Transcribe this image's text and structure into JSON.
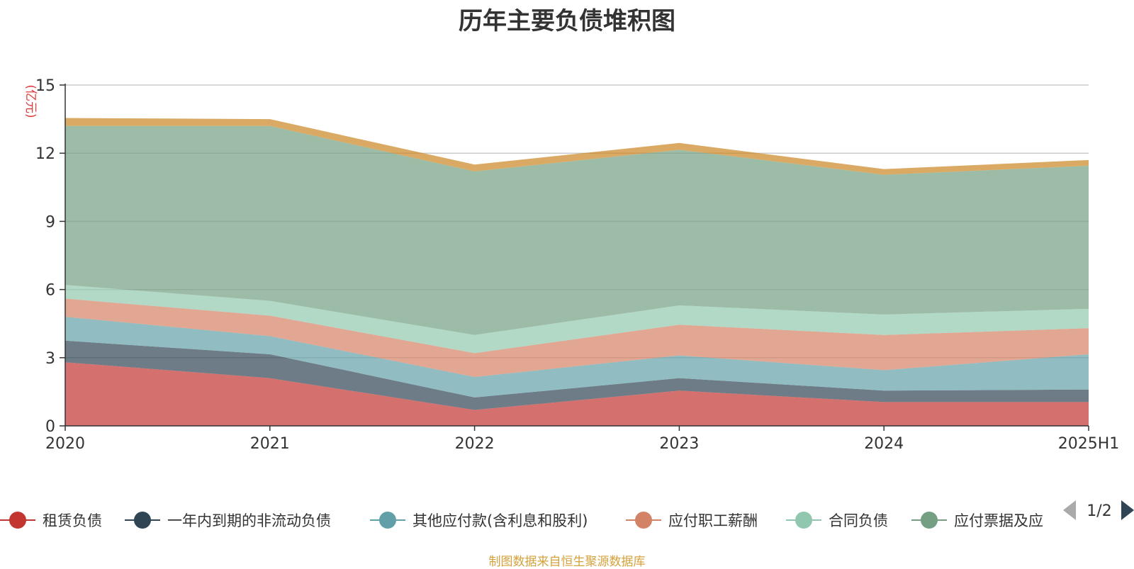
{
  "title": "历年主要负债堆积图",
  "footnote": "制图数据来自恒生聚源数据库",
  "legend_page": "1/2",
  "chart_data": {
    "type": "area",
    "stacked": true,
    "title": "历年主要负债堆积图",
    "ylabel": "(亿元)",
    "xlabel": "",
    "ylim": [
      0,
      15
    ],
    "yticks": [
      0,
      3,
      6,
      9,
      12,
      15
    ],
    "categories": [
      "2020",
      "2021",
      "2022",
      "2023",
      "2024",
      "2025H1"
    ],
    "grid": true,
    "legend_position": "bottom",
    "series": [
      {
        "name": "租赁负债",
        "color": "#c23531",
        "values": [
          2.8,
          2.1,
          0.7,
          1.55,
          1.05,
          1.05
        ]
      },
      {
        "name": "一年内到期的非流动负债",
        "color": "#2f4554",
        "values": [
          0.95,
          1.05,
          0.55,
          0.55,
          0.5,
          0.55
        ]
      },
      {
        "name": "其他应付款(含利息和股利)",
        "color": "#61a0a8",
        "values": [
          1.05,
          0.8,
          0.9,
          1.0,
          0.9,
          1.55
        ]
      },
      {
        "name": "应付职工薪酬",
        "color": "#d48265",
        "values": [
          0.8,
          0.9,
          1.05,
          1.35,
          1.55,
          1.15
        ]
      },
      {
        "name": "合同负债",
        "color": "#91c7ae",
        "values": [
          0.6,
          0.65,
          0.8,
          0.85,
          0.9,
          0.85
        ]
      },
      {
        "name": "应付票据及应付账款",
        "legend_text": "应付票据及应",
        "color": "#749f83",
        "values": [
          7.0,
          7.7,
          7.2,
          6.85,
          6.15,
          6.3
        ]
      },
      {
        "name": "",
        "color": "#ca8622",
        "values": [
          0.35,
          0.3,
          0.3,
          0.3,
          0.25,
          0.25
        ]
      }
    ]
  }
}
